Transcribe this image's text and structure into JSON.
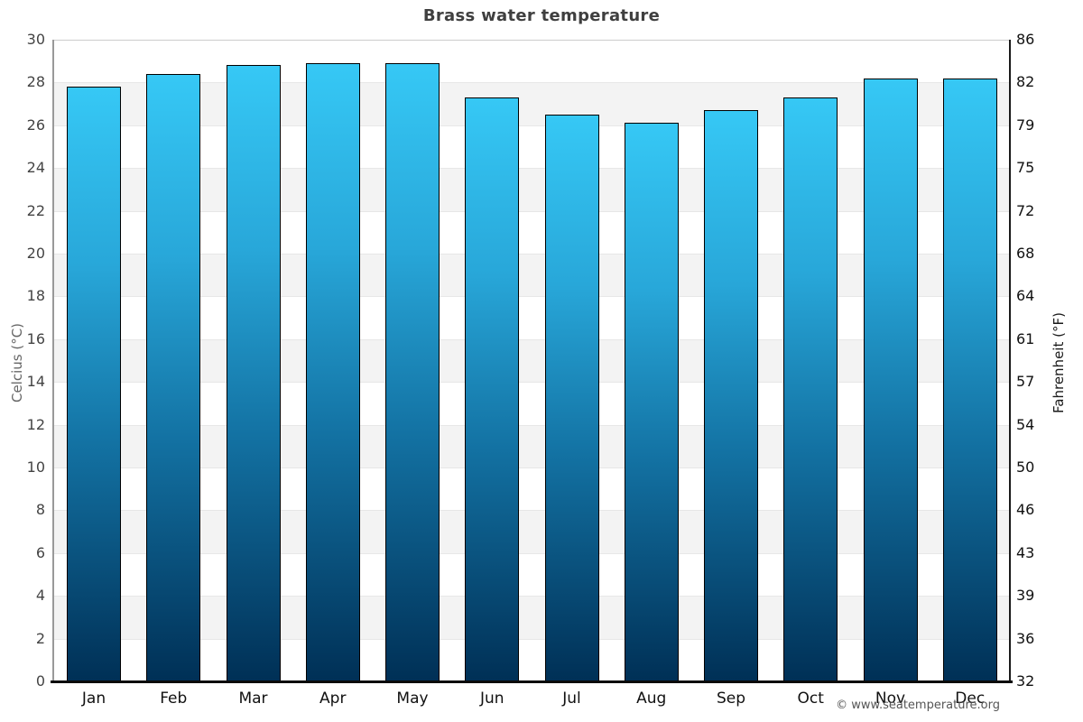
{
  "chart_data": {
    "type": "bar",
    "title": "Brass water temperature",
    "categories": [
      "Jan",
      "Feb",
      "Mar",
      "Apr",
      "May",
      "Jun",
      "Jul",
      "Aug",
      "Sep",
      "Oct",
      "Nov",
      "Dec"
    ],
    "values": [
      27.8,
      28.4,
      28.8,
      28.9,
      28.9,
      27.3,
      26.5,
      26.1,
      26.7,
      27.3,
      28.2,
      28.2
    ],
    "unit": "°C",
    "ylabel_left": "Celcius (°C)",
    "ylabel_right": "Fahrenheit (°F)",
    "ylim_left": [
      0,
      30
    ],
    "yticks_left": [
      0,
      2,
      4,
      6,
      8,
      10,
      12,
      14,
      16,
      18,
      20,
      22,
      24,
      26,
      28,
      30
    ],
    "yticks_right_labels": [
      "32",
      "36",
      "39",
      "43",
      "46",
      "50",
      "54",
      "57",
      "61",
      "64",
      "68",
      "72",
      "75",
      "79",
      "82",
      "86"
    ],
    "grid": "alternating-horizontal-bands",
    "legend": "none",
    "colors": {
      "bar_gradient_top": "#36c8f5",
      "bar_gradient_mid": "#1372a3",
      "bar_gradient_bottom": "#003056",
      "bar_border": "#000000",
      "band_gray": "#f3f3f3",
      "band_white": "#ffffff"
    }
  },
  "footer": {
    "copyright": "© www.seatemperature.org"
  }
}
